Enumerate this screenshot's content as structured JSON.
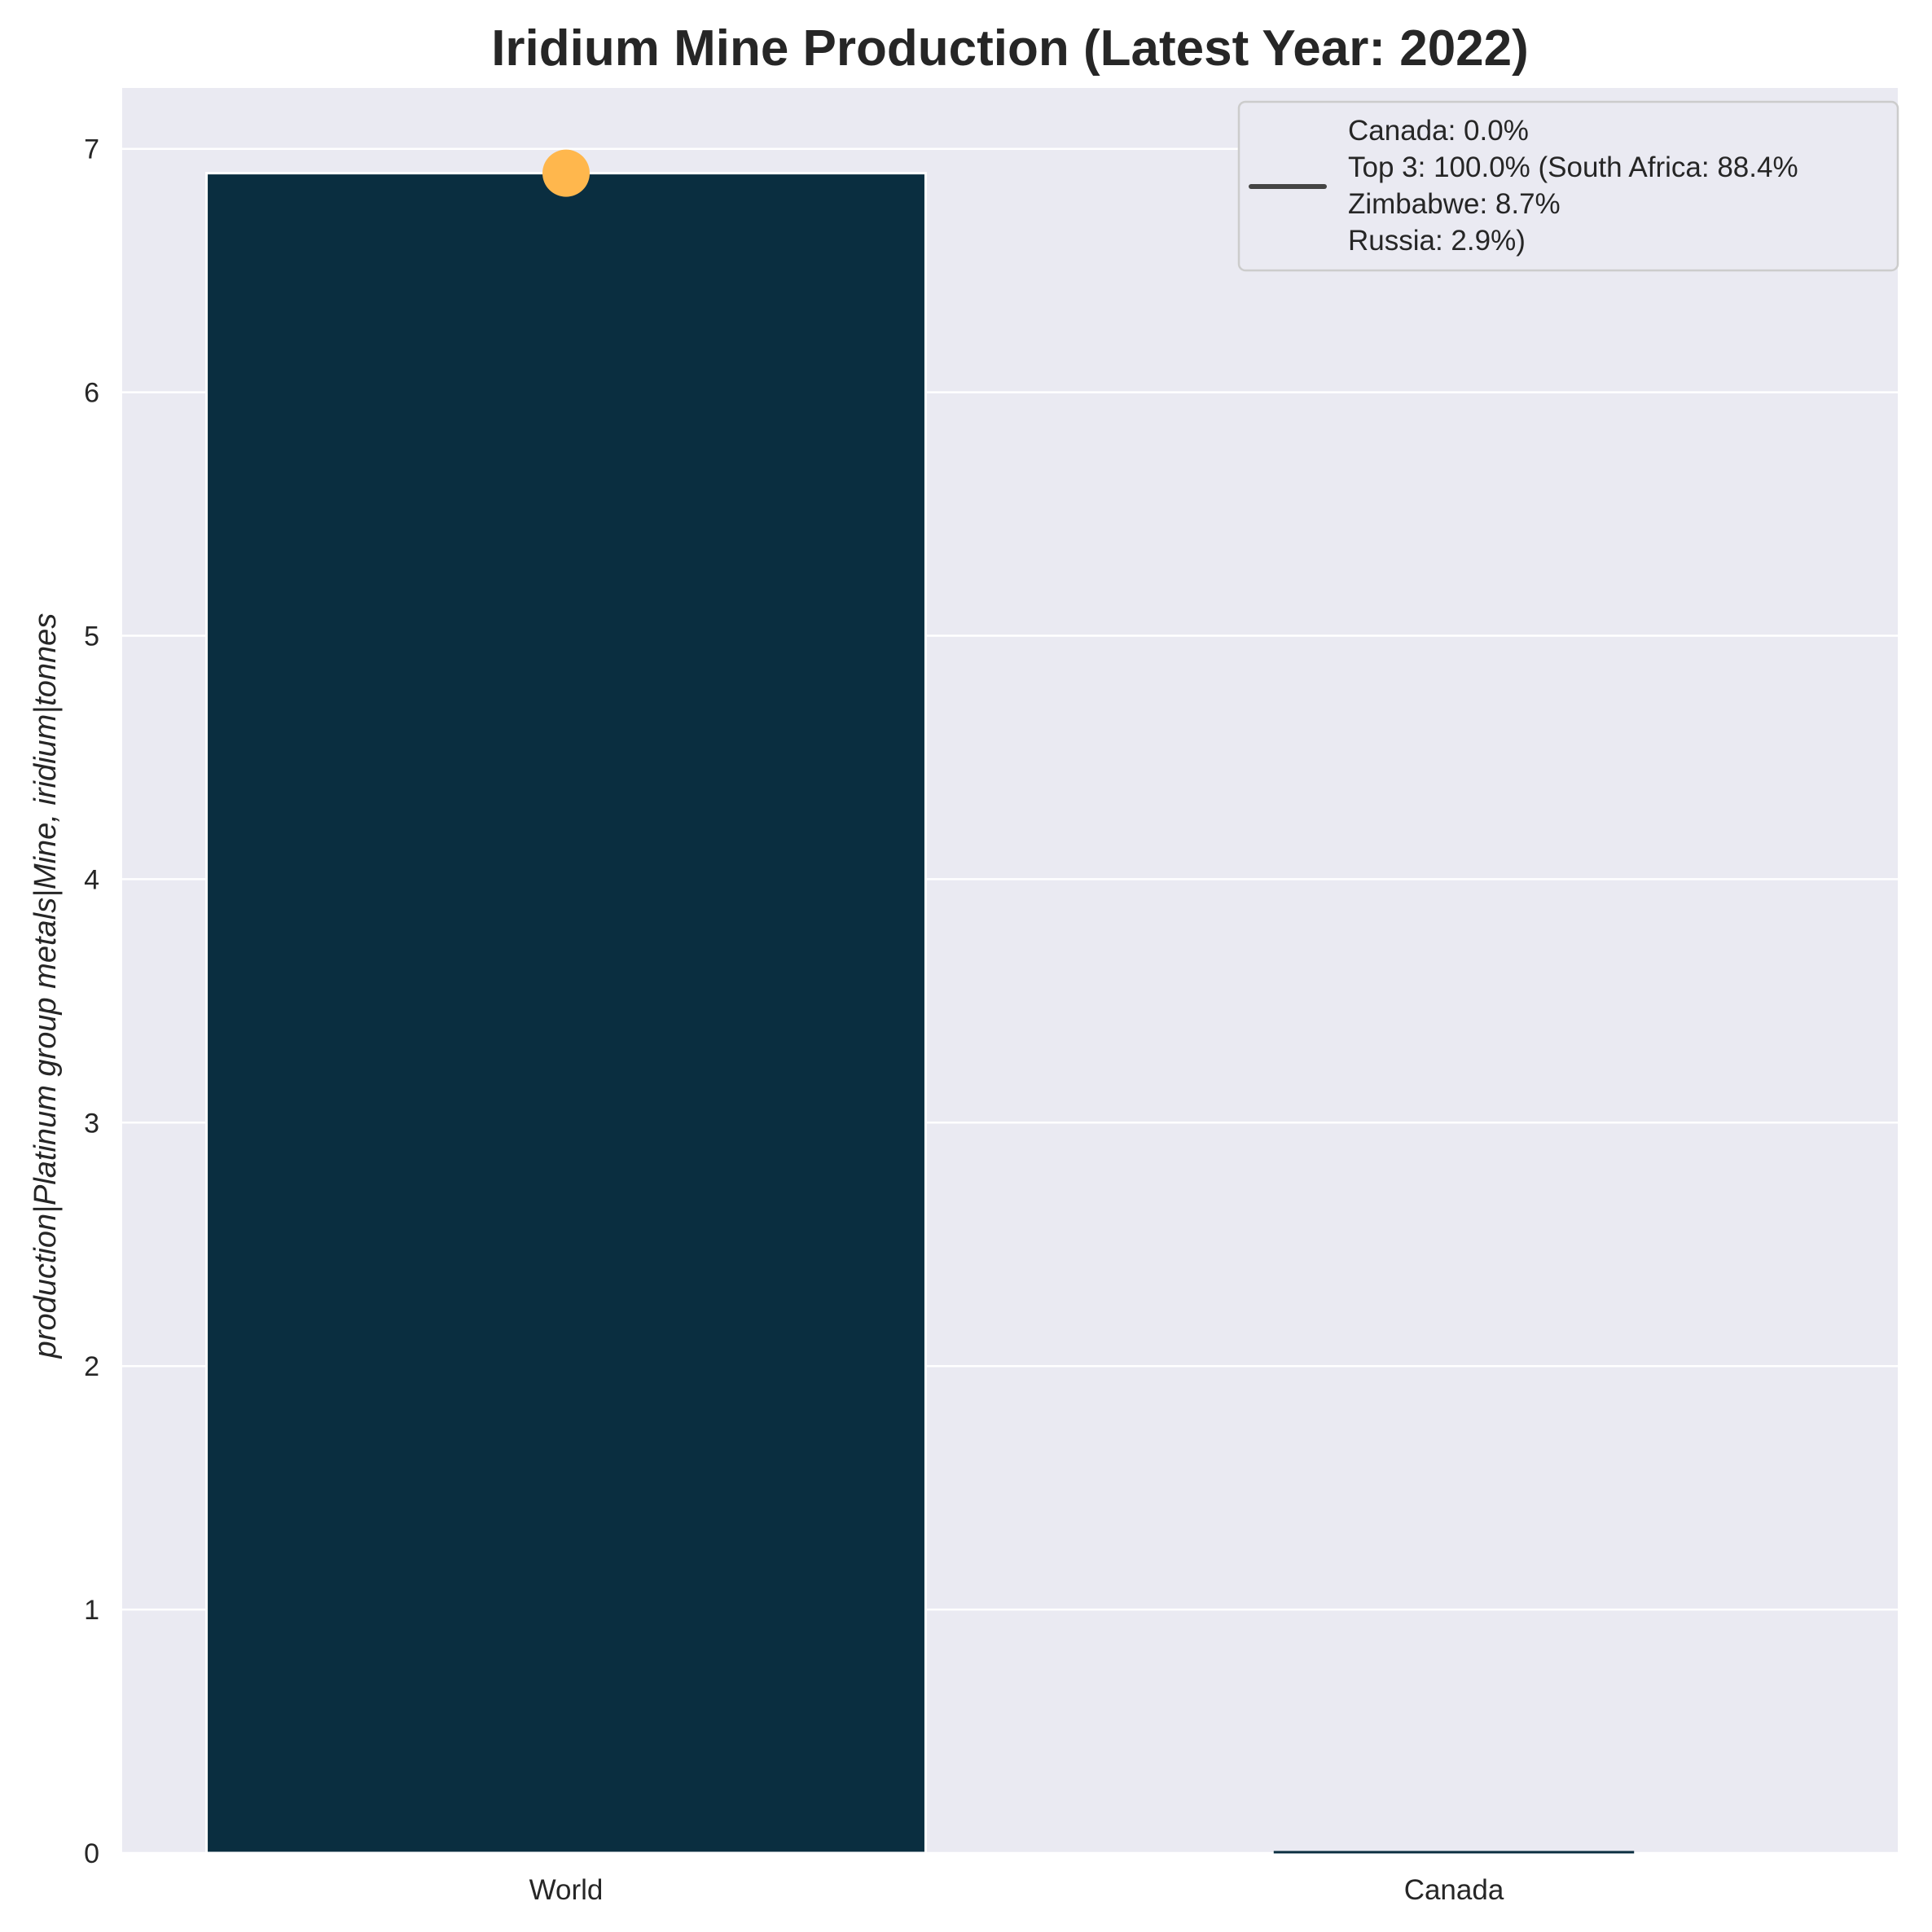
{
  "chart_data": {
    "type": "bar",
    "title": "Iridium Mine Production (Latest Year: 2022)",
    "xlabel": "",
    "ylabel": "production|Platinum group metals|Mine, iridium|tonnes",
    "categories": [
      "World",
      "Canada"
    ],
    "values": [
      6.9,
      0.0
    ],
    "ylim": [
      0,
      7.25
    ],
    "yticks": [
      0,
      1,
      2,
      3,
      4,
      5,
      6,
      7
    ],
    "grid": true,
    "bar_colors": [
      "#0a2e40",
      "#0a2e40"
    ],
    "marker": {
      "category": "World",
      "value": 6.9,
      "color": "#ffb74d"
    },
    "legend": {
      "placement": "top-right",
      "line_color": "#444444",
      "lines": [
        "Canada: 0.0%",
        "Top 3: 100.0% (South Africa: 88.4%",
        "Zimbabwe: 8.7%",
        "Russia: 2.9%)"
      ]
    },
    "colors": {
      "plot_background": "#eaeaf2",
      "grid": "#ffffff",
      "text": "#262626"
    }
  }
}
